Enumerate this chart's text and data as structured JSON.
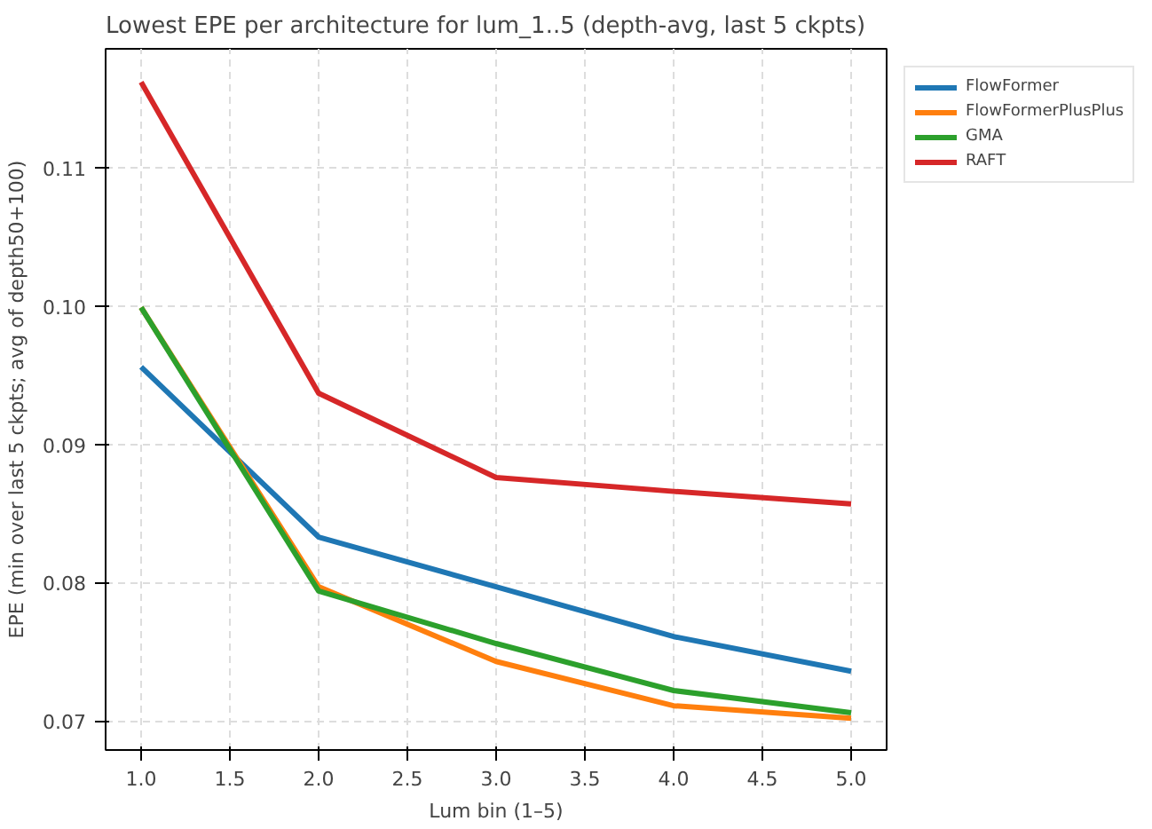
{
  "chart_data": {
    "type": "line",
    "title": "Lowest EPE per architecture for lum_1..5 (depth-avg, last 5 ckpts)",
    "xlabel": "Lum bin (1–5)",
    "ylabel": "EPE (min over last 5 ckpts; avg of depth50+100)",
    "x": [
      1,
      2,
      3,
      4,
      5
    ],
    "series": [
      {
        "name": "FlowFormer",
        "color": "#1f77b4",
        "values": [
          0.0956,
          0.0833,
          0.0797,
          0.0761,
          0.0736
        ]
      },
      {
        "name": "FlowFormerPlusPlus",
        "color": "#ff7f0e",
        "values": [
          0.0999,
          0.0797,
          0.0743,
          0.0711,
          0.0702
        ]
      },
      {
        "name": "GMA",
        "color": "#2ca02c",
        "values": [
          0.0999,
          0.0794,
          0.0756,
          0.0722,
          0.0706
        ]
      },
      {
        "name": "RAFT",
        "color": "#d62728",
        "values": [
          0.1162,
          0.0937,
          0.0876,
          0.0866,
          0.0857
        ]
      }
    ],
    "xlim": [
      0.8,
      5.2
    ],
    "ylim": [
      0.0679,
      0.1186
    ],
    "xticks": [
      {
        "value": 1,
        "label": "1.0"
      },
      {
        "value": 1.5,
        "label": "1.5"
      },
      {
        "value": 2,
        "label": "2.0"
      },
      {
        "value": 2.5,
        "label": "2.5"
      },
      {
        "value": 3,
        "label": "3.0"
      },
      {
        "value": 3.5,
        "label": "3.5"
      },
      {
        "value": 4,
        "label": "4.0"
      },
      {
        "value": 4.5,
        "label": "4.5"
      },
      {
        "value": 5,
        "label": "5.0"
      }
    ],
    "yticks": [
      {
        "value": 0.07,
        "label": "0.07"
      },
      {
        "value": 0.08,
        "label": "0.08"
      },
      {
        "value": 0.09,
        "label": "0.09"
      },
      {
        "value": 0.1,
        "label": "0.10"
      },
      {
        "value": 0.11,
        "label": "0.11"
      }
    ],
    "grid": true,
    "legend": "top right",
    "marker": "none",
    "line_style": "solid"
  }
}
